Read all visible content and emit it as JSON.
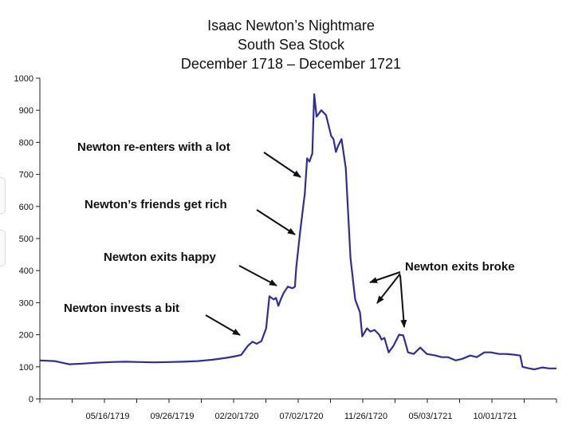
{
  "chart_data": {
    "type": "line",
    "title": "Isaac Newton’s Nightmare",
    "subtitle": "South Sea Stock",
    "period": "December 1718 – December 1721",
    "ylim": [
      0,
      1000
    ],
    "y_ticks": [
      0,
      100,
      200,
      300,
      400,
      500,
      600,
      700,
      800,
      900,
      1000
    ],
    "x_tick_labels": [
      "05/16/1719",
      "09/26/1719",
      "02/20/1720",
      "07/02/1720",
      "11/26/1720",
      "05/03/1721",
      "10/01/1721"
    ],
    "grid": false,
    "color": "#2e2e96",
    "series": [
      {
        "x": [
          "1718-12-01",
          "1719-01-01",
          "1719-02-01",
          "1719-03-01",
          "1719-04-01",
          "1719-05-01",
          "1719-06-01",
          "1719-07-01",
          "1719-08-01",
          "1719-09-01",
          "1719-10-01",
          "1719-11-01",
          "1719-12-01",
          "1720-01-01",
          "1720-01-20",
          "1720-02-01",
          "1720-02-15",
          "1720-02-25",
          "1720-03-05",
          "1720-03-15",
          "1720-03-25",
          "1720-04-01",
          "1720-04-10",
          "1720-04-15",
          "1720-04-20",
          "1720-04-25",
          "1720-05-01",
          "1720-05-10",
          "1720-05-20",
          "1720-05-25",
          "1720-05-28",
          "1720-06-05",
          "1720-06-15",
          "1720-06-20",
          "1720-06-25",
          "1720-07-01",
          "1720-07-05",
          "1720-07-10",
          "1720-07-20",
          "1720-07-30",
          "1720-08-05",
          "1720-08-10",
          "1720-08-15",
          "1720-08-20",
          "1720-08-25",
          "1720-09-01",
          "1720-09-10",
          "1720-09-20",
          "1720-09-30",
          "1720-10-10",
          "1720-10-15",
          "1720-10-25",
          "1720-11-01",
          "1720-11-10",
          "1720-11-20",
          "1720-11-25",
          "1720-12-01",
          "1720-12-10",
          "1720-12-20",
          "1721-01-01",
          "1721-01-10",
          "1721-01-20",
          "1721-02-01",
          "1721-02-15",
          "1721-03-01",
          "1721-03-20",
          "1721-04-01",
          "1721-04-15",
          "1721-05-01",
          "1721-05-15",
          "1721-06-01",
          "1721-06-15",
          "1721-07-01",
          "1721-07-15",
          "1721-08-01",
          "1721-08-15",
          "1721-09-01",
          "1721-09-15",
          "1721-09-20",
          "1721-10-01",
          "1721-10-15",
          "1721-11-01",
          "1721-11-15",
          "1721-12-01"
        ],
        "y": [
          120,
          118,
          108,
          110,
          113,
          115,
          116,
          115,
          114,
          115,
          116,
          118,
          122,
          128,
          133,
          137,
          165,
          178,
          172,
          180,
          220,
          320,
          310,
          315,
          290,
          310,
          330,
          350,
          345,
          350,
          410,
          520,
          640,
          750,
          740,
          765,
          950,
          880,
          900,
          885,
          850,
          820,
          810,
          770,
          790,
          810,
          720,
          440,
          310,
          270,
          195,
          220,
          210,
          215,
          200,
          185,
          190,
          145,
          165,
          200,
          198,
          145,
          140,
          160,
          140,
          135,
          130,
          130,
          120,
          125,
          135,
          130,
          145,
          145,
          140,
          140,
          138,
          135,
          100,
          96,
          92,
          98,
          95,
          95
        ]
      }
    ],
    "annotations": [
      "Newton invests a bit",
      "Newton exits happy",
      "Newton’s friends get rich",
      "Newton re-enters with a lot",
      "Newton exits broke"
    ]
  }
}
